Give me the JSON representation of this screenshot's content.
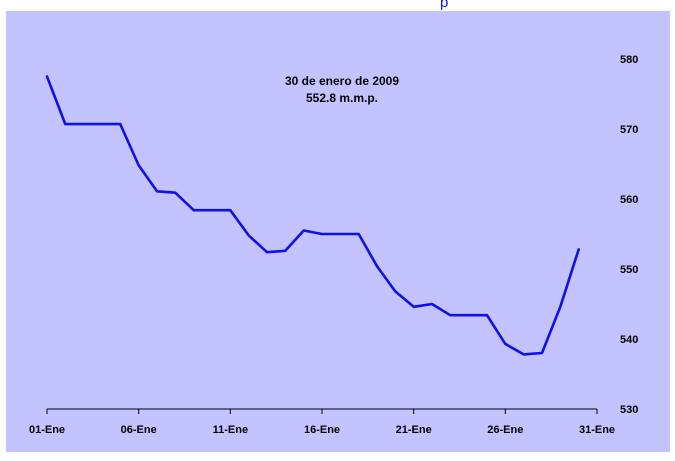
{
  "header": {
    "cutoff_title": "p"
  },
  "colors": {
    "panel": "#c3c3ff",
    "line": "#1010e8",
    "axis": "#000000"
  },
  "chart_data": {
    "type": "line",
    "annotation": [
      "30 de enero de 2009",
      "552.8 m.m.p."
    ],
    "x_tick_labels": [
      "01-Ene",
      "06-Ene",
      "11-Ene",
      "16-Ene",
      "21-Ene",
      "26-Ene",
      "31-Ene"
    ],
    "x_tick_days": [
      1,
      6,
      11,
      16,
      21,
      26,
      31
    ],
    "y_ticks": [
      530,
      540,
      550,
      560,
      570,
      580
    ],
    "ylim": [
      530,
      580
    ],
    "xlim": [
      1,
      31
    ],
    "grid": false,
    "series": [
      {
        "x": [
          1,
          2,
          3,
          4,
          5,
          6,
          7,
          8,
          9,
          10,
          11,
          12,
          13,
          14,
          15,
          16,
          17,
          18,
          19,
          20,
          21,
          22,
          23,
          24,
          25,
          26,
          27,
          28,
          29,
          30
        ],
        "values": [
          577.5,
          570.7,
          570.7,
          570.7,
          570.7,
          564.8,
          561.1,
          560.9,
          558.4,
          558.4,
          558.4,
          554.8,
          552.4,
          552.6,
          555.5,
          555.0,
          555.0,
          555.0,
          550.4,
          546.8,
          544.6,
          545.0,
          543.4,
          543.4,
          543.4,
          539.3,
          537.8,
          538.0,
          544.6,
          552.8
        ]
      }
    ]
  }
}
